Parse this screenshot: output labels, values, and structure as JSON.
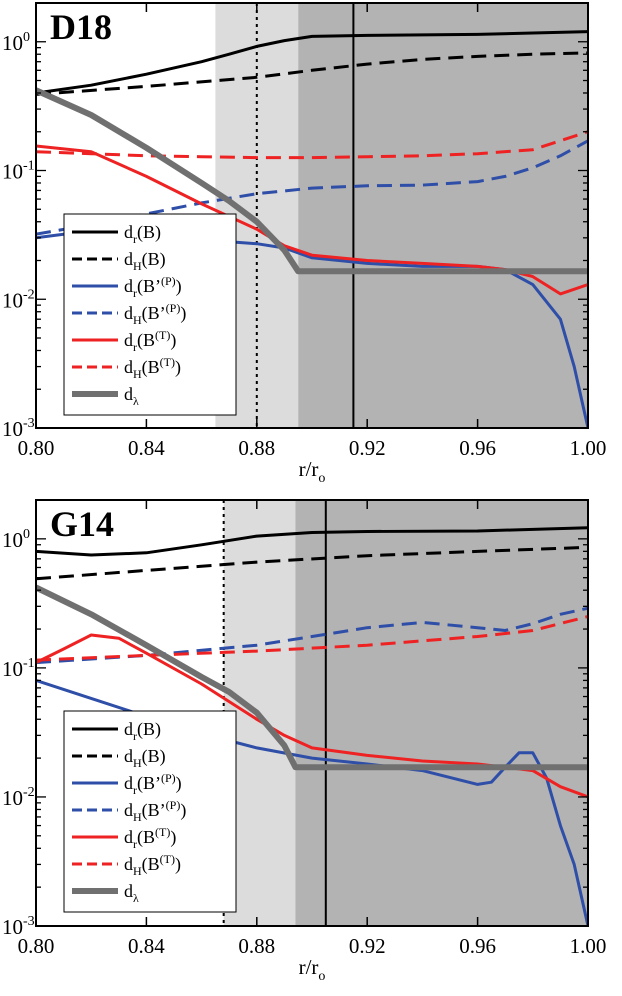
{
  "chart_data": [
    {
      "type": "line",
      "panel_label": "D18",
      "xlabel": "r/r",
      "xlabel_sub": "o",
      "xlim": [
        0.8,
        1.0
      ],
      "ylim": [
        0.001,
        2
      ],
      "y_scale": "log",
      "x_ticks": [
        "0.80",
        "0.84",
        "0.88",
        "0.92",
        "0.96",
        "1.00"
      ],
      "x_tick_values": [
        0.8,
        0.84,
        0.88,
        0.92,
        0.96,
        1.0
      ],
      "y_ticks": [
        {
          "base": "10",
          "exp": "0",
          "value": 1
        },
        {
          "base": "10",
          "exp": "-1",
          "value": 0.1
        },
        {
          "base": "10",
          "exp": "-2",
          "value": 0.01
        },
        {
          "base": "10",
          "exp": "-3",
          "value": 0.001
        }
      ],
      "shaded_regions": [
        {
          "from": 0.865,
          "to": 0.895,
          "color": "#dcdcdc"
        },
        {
          "from": 0.895,
          "to": 1.0,
          "color": "#b3b3b3"
        }
      ],
      "vlines": [
        {
          "x": 0.88,
          "style": "dotted"
        },
        {
          "x": 0.915,
          "style": "solid"
        }
      ],
      "series": [
        {
          "name": "dr(B)",
          "color": "#000000",
          "dash": "solid",
          "width": 3,
          "x": [
            0.8,
            0.82,
            0.84,
            0.86,
            0.87,
            0.88,
            0.89,
            0.9,
            0.92,
            0.96,
            1.0
          ],
          "y": [
            0.4,
            0.46,
            0.56,
            0.7,
            0.8,
            0.92,
            1.02,
            1.1,
            1.12,
            1.14,
            1.2
          ]
        },
        {
          "name": "dH(B)",
          "color": "#000000",
          "dash": "dashed",
          "width": 3,
          "x": [
            0.8,
            0.84,
            0.88,
            0.9,
            0.92,
            0.94,
            0.96,
            0.98,
            1.0
          ],
          "y": [
            0.39,
            0.45,
            0.53,
            0.6,
            0.67,
            0.73,
            0.77,
            0.8,
            0.82
          ]
        },
        {
          "name": "dr(B'(P))",
          "color": "#2e4ea8",
          "dash": "solid",
          "width": 3,
          "x": [
            0.8,
            0.82,
            0.84,
            0.86,
            0.88,
            0.89,
            0.9,
            0.92,
            0.94,
            0.96,
            0.97,
            0.98,
            0.99,
            0.995,
            1.0
          ],
          "y": [
            0.03,
            0.034,
            0.032,
            0.029,
            0.027,
            0.025,
            0.021,
            0.019,
            0.018,
            0.018,
            0.017,
            0.013,
            0.007,
            0.003,
            0.001
          ]
        },
        {
          "name": "dH(B'(P))",
          "color": "#2e4ea8",
          "dash": "dashed",
          "width": 3,
          "x": [
            0.8,
            0.82,
            0.84,
            0.86,
            0.88,
            0.9,
            0.92,
            0.94,
            0.96,
            0.97,
            0.98,
            0.99,
            1.0
          ],
          "y": [
            0.032,
            0.038,
            0.046,
            0.056,
            0.066,
            0.073,
            0.076,
            0.077,
            0.082,
            0.09,
            0.105,
            0.13,
            0.17
          ]
        },
        {
          "name": "dr(B(T))",
          "color": "#ee2222",
          "dash": "solid",
          "width": 3,
          "x": [
            0.8,
            0.82,
            0.84,
            0.86,
            0.88,
            0.89,
            0.9,
            0.92,
            0.94,
            0.96,
            0.97,
            0.98,
            0.99,
            1.0
          ],
          "y": [
            0.155,
            0.14,
            0.09,
            0.055,
            0.035,
            0.026,
            0.022,
            0.02,
            0.019,
            0.018,
            0.017,
            0.015,
            0.011,
            0.013
          ]
        },
        {
          "name": "dH(B(T))",
          "color": "#ee2222",
          "dash": "dashed",
          "width": 3,
          "x": [
            0.8,
            0.82,
            0.84,
            0.86,
            0.88,
            0.9,
            0.92,
            0.94,
            0.96,
            0.98,
            1.0
          ],
          "y": [
            0.14,
            0.135,
            0.13,
            0.128,
            0.126,
            0.126,
            0.128,
            0.13,
            0.135,
            0.145,
            0.2
          ]
        },
        {
          "name": "dλ",
          "color": "#707070",
          "dash": "solid",
          "width": 6,
          "x": [
            0.8,
            0.82,
            0.84,
            0.86,
            0.87,
            0.88,
            0.89,
            0.895,
            0.92,
            0.96,
            1.0
          ],
          "y": [
            0.42,
            0.27,
            0.15,
            0.08,
            0.058,
            0.04,
            0.024,
            0.0165,
            0.0165,
            0.0165,
            0.0165
          ]
        }
      ],
      "legend": [
        {
          "base": "d",
          "sub": "r",
          "arg": "(B)",
          "sup": "",
          "tail": ""
        },
        {
          "base": "d",
          "sub": "H",
          "arg": "(B)",
          "sup": "",
          "tail": ""
        },
        {
          "base": "d",
          "sub": "r",
          "arg": "(B’",
          "sup": "(P)",
          "tail": ")"
        },
        {
          "base": "d",
          "sub": "H",
          "arg": "(B’",
          "sup": "(P)",
          "tail": ")"
        },
        {
          "base": "d",
          "sub": "r",
          "arg": "(B",
          "sup": "(T)",
          "tail": ")"
        },
        {
          "base": "d",
          "sub": "H",
          "arg": "(B",
          "sup": "(T)",
          "tail": ")"
        },
        {
          "base": "d",
          "sub": "λ",
          "arg": "",
          "sup": "",
          "tail": ""
        }
      ]
    },
    {
      "type": "line",
      "panel_label": "G14",
      "xlabel": "r/r",
      "xlabel_sub": "o",
      "xlim": [
        0.8,
        1.0
      ],
      "ylim": [
        0.001,
        2
      ],
      "y_scale": "log",
      "x_ticks": [
        "0.80",
        "0.84",
        "0.88",
        "0.92",
        "0.96",
        "1.00"
      ],
      "x_tick_values": [
        0.8,
        0.84,
        0.88,
        0.92,
        0.96,
        1.0
      ],
      "y_ticks": [
        {
          "base": "10",
          "exp": "0",
          "value": 1
        },
        {
          "base": "10",
          "exp": "-1",
          "value": 0.1
        },
        {
          "base": "10",
          "exp": "-2",
          "value": 0.01
        },
        {
          "base": "10",
          "exp": "-3",
          "value": 0.001
        }
      ],
      "shaded_regions": [
        {
          "from": 0.868,
          "to": 0.894,
          "color": "#dcdcdc"
        },
        {
          "from": 0.894,
          "to": 1.0,
          "color": "#b3b3b3"
        }
      ],
      "vlines": [
        {
          "x": 0.868,
          "style": "dotted"
        },
        {
          "x": 0.905,
          "style": "solid"
        }
      ],
      "series": [
        {
          "name": "dr(B)",
          "color": "#000000",
          "dash": "solid",
          "width": 3,
          "x": [
            0.8,
            0.82,
            0.84,
            0.86,
            0.88,
            0.9,
            0.92,
            0.96,
            1.0
          ],
          "y": [
            0.8,
            0.75,
            0.78,
            0.9,
            1.05,
            1.12,
            1.14,
            1.15,
            1.22
          ]
        },
        {
          "name": "dH(B)",
          "color": "#000000",
          "dash": "dashed",
          "width": 3,
          "x": [
            0.8,
            0.84,
            0.88,
            0.92,
            0.96,
            1.0
          ],
          "y": [
            0.49,
            0.57,
            0.66,
            0.74,
            0.8,
            0.86
          ]
        },
        {
          "name": "dr(B'(P))",
          "color": "#2e4ea8",
          "dash": "solid",
          "width": 3,
          "x": [
            0.8,
            0.82,
            0.84,
            0.86,
            0.88,
            0.9,
            0.92,
            0.94,
            0.96,
            0.965,
            0.97,
            0.975,
            0.98,
            0.985,
            0.99,
            0.995,
            1.0
          ],
          "y": [
            0.08,
            0.058,
            0.042,
            0.031,
            0.024,
            0.02,
            0.018,
            0.016,
            0.0125,
            0.013,
            0.017,
            0.022,
            0.022,
            0.014,
            0.006,
            0.003,
            0.001
          ]
        },
        {
          "name": "dH(B'(P))",
          "color": "#2e4ea8",
          "dash": "dashed",
          "width": 3,
          "x": [
            0.8,
            0.84,
            0.88,
            0.9,
            0.92,
            0.94,
            0.96,
            0.97,
            0.98,
            0.99,
            1.0
          ],
          "y": [
            0.11,
            0.125,
            0.15,
            0.175,
            0.205,
            0.225,
            0.205,
            0.195,
            0.22,
            0.26,
            0.29
          ]
        },
        {
          "name": "dr(B(T))",
          "color": "#ee2222",
          "dash": "solid",
          "width": 3,
          "x": [
            0.8,
            0.81,
            0.82,
            0.83,
            0.84,
            0.86,
            0.88,
            0.89,
            0.9,
            0.92,
            0.94,
            0.96,
            0.97,
            0.98,
            0.99,
            1.0
          ],
          "y": [
            0.11,
            0.14,
            0.18,
            0.17,
            0.13,
            0.075,
            0.04,
            0.03,
            0.024,
            0.021,
            0.019,
            0.018,
            0.017,
            0.016,
            0.012,
            0.01
          ]
        },
        {
          "name": "dH(B(T))",
          "color": "#ee2222",
          "dash": "dashed",
          "width": 3,
          "x": [
            0.8,
            0.84,
            0.88,
            0.92,
            0.96,
            0.98,
            1.0
          ],
          "y": [
            0.115,
            0.125,
            0.135,
            0.15,
            0.175,
            0.195,
            0.25
          ]
        },
        {
          "name": "dλ",
          "color": "#707070",
          "dash": "solid",
          "width": 6,
          "x": [
            0.8,
            0.82,
            0.84,
            0.86,
            0.87,
            0.88,
            0.89,
            0.894,
            0.92,
            0.96,
            1.0
          ],
          "y": [
            0.42,
            0.26,
            0.15,
            0.085,
            0.065,
            0.045,
            0.025,
            0.017,
            0.017,
            0.017,
            0.017
          ]
        }
      ],
      "legend": [
        {
          "base": "d",
          "sub": "r",
          "arg": "(B)",
          "sup": "",
          "tail": ""
        },
        {
          "base": "d",
          "sub": "H",
          "arg": "(B)",
          "sup": "",
          "tail": ""
        },
        {
          "base": "d",
          "sub": "r",
          "arg": "(B’",
          "sup": "(P)",
          "tail": ")"
        },
        {
          "base": "d",
          "sub": "H",
          "arg": "(B’",
          "sup": "(P)",
          "tail": ")"
        },
        {
          "base": "d",
          "sub": "r",
          "arg": "(B",
          "sup": "(T)",
          "tail": ")"
        },
        {
          "base": "d",
          "sub": "H",
          "arg": "(B",
          "sup": "(T)",
          "tail": ")"
        },
        {
          "base": "d",
          "sub": "λ",
          "arg": "",
          "sup": "",
          "tail": ""
        }
      ]
    }
  ]
}
